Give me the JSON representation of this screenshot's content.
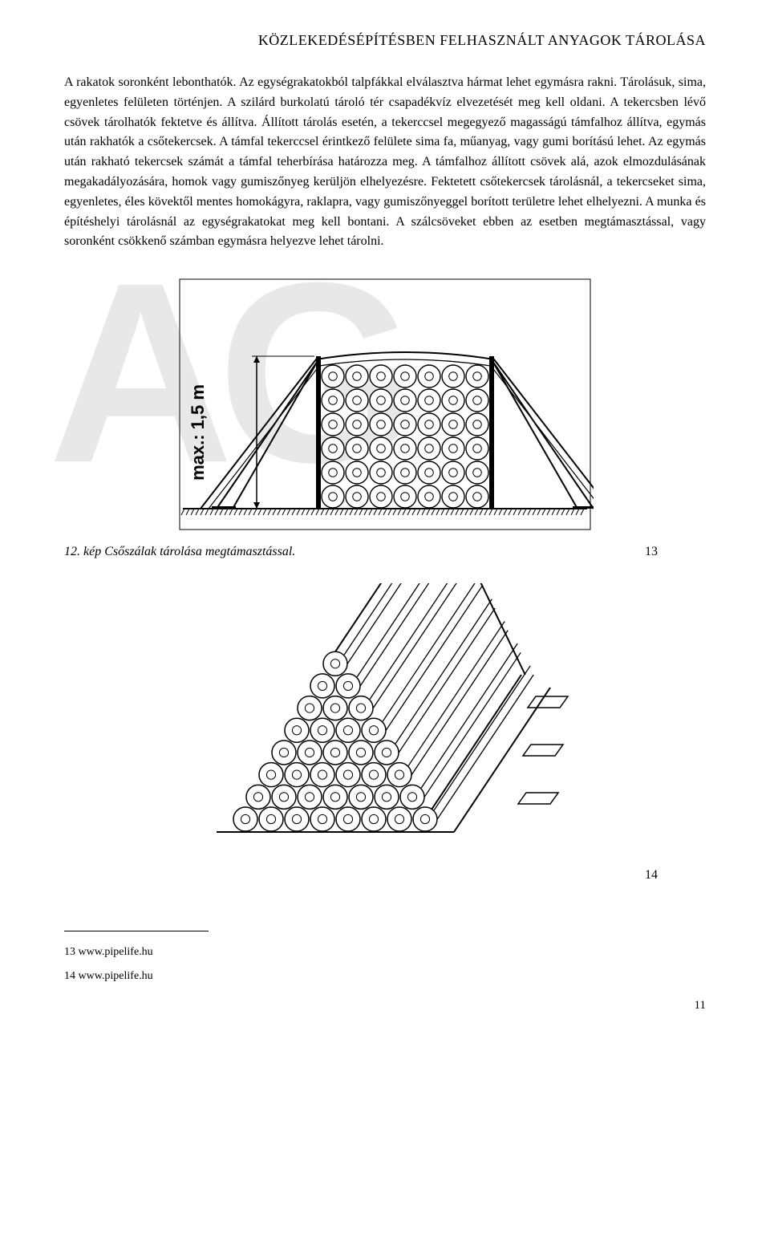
{
  "header": {
    "title": "KÖZLEKEDÉSÉPÍTÉSBEN FELHASZNÁLT ANYAGOK TÁROLÁSA"
  },
  "paragraph": "A rakatok soronként lebonthatók. Az egységrakatokból talpfákkal elválasztva hármat lehet egymásra rakni. Tárolásuk, sima, egyenletes felületen történjen. A szilárd burkolatú tároló tér csapadékvíz elvezetését meg kell oldani. A tekercsben lévő csövek tárolhatók fektetve és állítva. Állított tárolás esetén, a tekerccsel megegyező magasságú támfalhoz állítva, egymás után rakhatók a csőtekercsek. A támfal tekerccsel érintkező felülete sima fa, műanyag, vagy gumi borítású lehet. Az egymás után rakható tekercsek számát a támfal teherbírása határozza meg. A támfalhoz állított csövek alá, azok elmozdulásának megakadályozására, homok vagy gumiszőnyeg kerüljön elhelyezésre. Fektetett csőtekercsek tárolásnál, a tekercseket sima, egyenletes, éles kövektől mentes homokágyra, raklapra, vagy gumiszőnyeggel borított területre lehet elhelyezni. A munka és építéshelyi tárolásnál az egységrakatokat meg kell bontani. A szálcsöveket ebben az esetben megtámasztással, vagy soronként csökkenő számban egymásra helyezve lehet tárolni.",
  "figure1": {
    "caption": "12. kép Csőszálak tárolása megtámasztással.",
    "footnote_ref": "13",
    "dim_label": "max.: 1,5 m",
    "pipe_rows": 6,
    "pipe_cols": 7,
    "pipe_radius": 15,
    "colors": {
      "stroke": "#000000",
      "fill": "#ffffff",
      "ground": "#000000"
    }
  },
  "figure2": {
    "footnote_ref": "14",
    "pyramid_base": 8,
    "pipe_radius": 16,
    "colors": {
      "stroke": "#000000",
      "fill": "#ffffff"
    }
  },
  "footnotes": [
    {
      "num": "13",
      "text": "www.pipelife.hu"
    },
    {
      "num": "14",
      "text": "www.pipelife.hu"
    }
  ],
  "page_number": "11",
  "watermark": "AG"
}
